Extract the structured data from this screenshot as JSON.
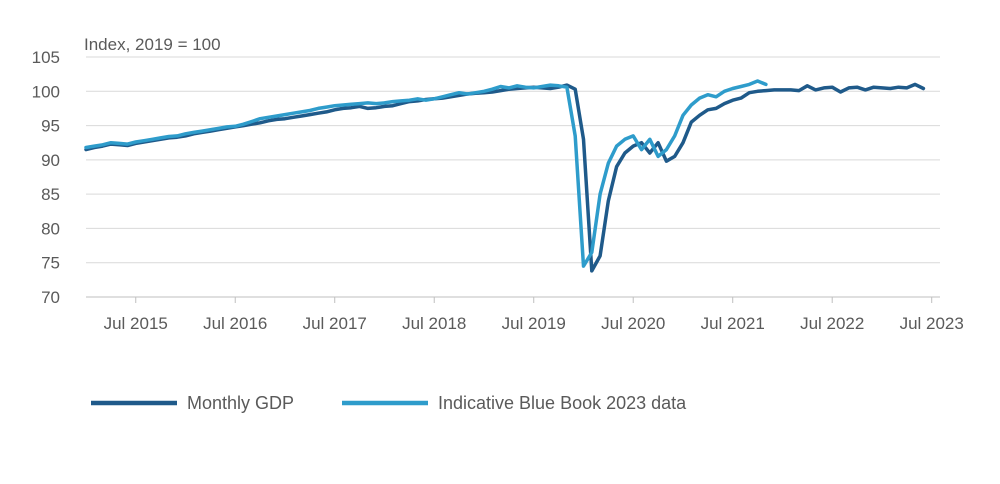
{
  "chart_data": {
    "type": "line",
    "ylabel": "Index, 2019 = 100",
    "ylim": [
      70,
      105
    ],
    "yticks": [
      70,
      75,
      80,
      85,
      90,
      95,
      100,
      105
    ],
    "xlim": [
      "2015-01",
      "2023-08"
    ],
    "xticks": [
      {
        "date": "2015-07",
        "label": "Jul 2015"
      },
      {
        "date": "2016-07",
        "label": "Jul 2016"
      },
      {
        "date": "2017-07",
        "label": "Jul 2017"
      },
      {
        "date": "2018-07",
        "label": "Jul 2018"
      },
      {
        "date": "2019-07",
        "label": "Jul 2019"
      },
      {
        "date": "2020-07",
        "label": "Jul 2020"
      },
      {
        "date": "2021-07",
        "label": "Jul 2021"
      },
      {
        "date": "2022-07",
        "label": "Jul 2022"
      },
      {
        "date": "2023-07",
        "label": "Jul 2023"
      }
    ],
    "grid": "horizontal",
    "legend_position": "bottom",
    "series": [
      {
        "name": "Monthly GDP",
        "color": "#1f5a8a",
        "start": "2015-01",
        "values": [
          91.5,
          91.8,
          92.0,
          92.3,
          92.2,
          92.1,
          92.4,
          92.6,
          92.8,
          93.0,
          93.2,
          93.3,
          93.5,
          93.8,
          94.0,
          94.2,
          94.4,
          94.6,
          94.8,
          95.0,
          95.2,
          95.4,
          95.7,
          95.9,
          96.0,
          96.2,
          96.4,
          96.6,
          96.8,
          97.0,
          97.3,
          97.5,
          97.6,
          97.8,
          97.5,
          97.6,
          97.8,
          97.9,
          98.2,
          98.5,
          98.6,
          98.8,
          98.9,
          99.0,
          99.2,
          99.4,
          99.6,
          99.7,
          99.8,
          99.9,
          100.1,
          100.3,
          100.4,
          100.5,
          100.6,
          100.5,
          100.4,
          100.6,
          100.9,
          100.3,
          93.0,
          73.8,
          76.0,
          84.0,
          89.0,
          91.0,
          92.0,
          92.5,
          91.0,
          92.5,
          89.8,
          90.5,
          92.5,
          95.5,
          96.5,
          97.3,
          97.5,
          98.2,
          98.7,
          99.0,
          99.8,
          100.0,
          100.1,
          100.2,
          100.2,
          100.2,
          100.1,
          100.8,
          100.2,
          100.5,
          100.6,
          99.9,
          100.5,
          100.6,
          100.2,
          100.6,
          100.5,
          100.4,
          100.6,
          100.5,
          101.0,
          100.4
        ]
      },
      {
        "name": "Indicative Blue Book 2023 data",
        "color": "#2e9ccb",
        "start": "2015-01",
        "values": [
          91.8,
          92.0,
          92.2,
          92.5,
          92.4,
          92.3,
          92.6,
          92.8,
          93.0,
          93.2,
          93.4,
          93.5,
          93.8,
          94.0,
          94.2,
          94.4,
          94.6,
          94.8,
          94.9,
          95.2,
          95.6,
          96.0,
          96.2,
          96.4,
          96.6,
          96.8,
          97.0,
          97.2,
          97.5,
          97.7,
          97.9,
          98.0,
          98.1,
          98.2,
          98.3,
          98.2,
          98.3,
          98.5,
          98.6,
          98.7,
          98.9,
          98.7,
          98.9,
          99.2,
          99.5,
          99.8,
          99.6,
          99.8,
          100.0,
          100.3,
          100.7,
          100.5,
          100.8,
          100.6,
          100.5,
          100.7,
          100.9,
          100.8,
          100.6,
          93.5,
          74.5,
          76.5,
          85.0,
          89.5,
          92.0,
          93.0,
          93.5,
          91.5,
          93.0,
          90.5,
          91.5,
          93.5,
          96.5,
          98.0,
          99.0,
          99.5,
          99.2,
          100.0,
          100.4,
          100.7,
          101.0,
          101.5,
          101.0
        ]
      }
    ]
  }
}
